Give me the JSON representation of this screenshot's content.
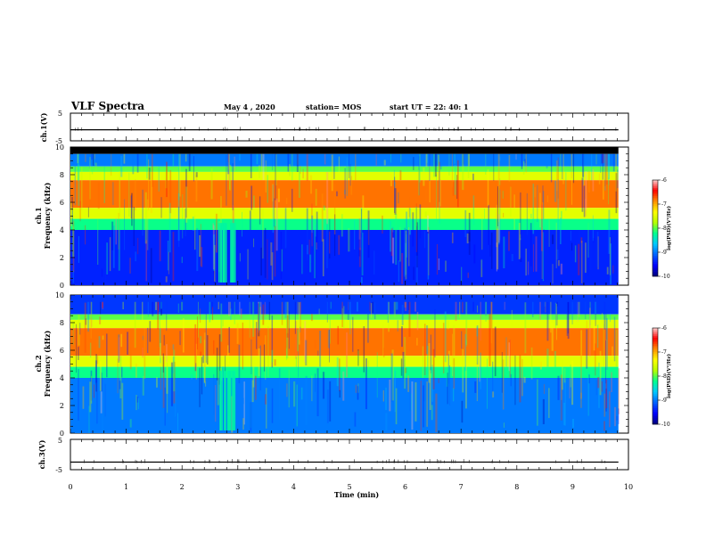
{
  "header": {
    "title": "VLF Spectra",
    "date": "May 4 , 2020",
    "station": "station= MOS",
    "start": "start  UT =   22: 40: 1"
  },
  "colors": {
    "colormap": [
      "#00007a",
      "#0000ff",
      "#0060ff",
      "#00c8ff",
      "#00ff90",
      "#b4ff00",
      "#ffff00",
      "#ff9000",
      "#ff0000",
      "#ffd0d0"
    ],
    "background_black": "#000000"
  },
  "chart_data": [
    {
      "type": "line",
      "panel": "ch1-voltage",
      "ylabel": "ch.1(V)",
      "ylim": [
        -5,
        5
      ],
      "yticks": [
        5,
        -5
      ],
      "series": [
        {
          "x": [
            0,
            9.82
          ],
          "y": [
            -1,
            -1
          ]
        }
      ]
    },
    {
      "type": "heatmap",
      "panel": "ch1-spectrogram",
      "ylabel_lines": [
        "ch.1",
        "Frequency (kHz)"
      ],
      "ylim": [
        0,
        10
      ],
      "xlim": [
        0,
        10
      ],
      "yticks": [
        "0",
        "2",
        "4",
        "6",
        "8",
        "10"
      ],
      "z_label": "log(PSD)(V²/Hz)",
      "zticks": [
        "-6",
        "-7",
        "-8",
        "-9",
        "-10"
      ],
      "zlim": [
        -10,
        -6
      ],
      "data_until_min": 9.82,
      "bands_khz": [
        {
          "from": 9.5,
          "to": 10.0,
          "level": "no data (black)"
        },
        {
          "from": 8.6,
          "to": 9.5,
          "level": -9.0
        },
        {
          "from": 8.2,
          "to": 8.6,
          "level": -8.0
        },
        {
          "from": 7.6,
          "to": 8.2,
          "level": -7.5
        },
        {
          "from": 5.6,
          "to": 7.6,
          "level": -6.8
        },
        {
          "from": 4.8,
          "to": 5.6,
          "level": -7.5
        },
        {
          "from": 4.0,
          "to": 4.8,
          "level": -8.2
        },
        {
          "from": 0.0,
          "to": 4.0,
          "level": -9.4
        }
      ],
      "bursts_min": [
        2.8
      ]
    },
    {
      "type": "heatmap",
      "panel": "ch2-spectrogram",
      "ylabel_lines": [
        "ch.2",
        "Frequency (kHz)"
      ],
      "ylim": [
        0,
        10
      ],
      "xlim": [
        0,
        10
      ],
      "yticks": [
        "0",
        "2",
        "4",
        "6",
        "8",
        "10"
      ],
      "z_label": "log(PSD)(V²/Hz)",
      "zticks": [
        "-6",
        "-7",
        "-8",
        "-9",
        "-10"
      ],
      "zlim": [
        -10,
        -6
      ],
      "data_until_min": 9.82,
      "bands_khz": [
        {
          "from": 8.6,
          "to": 10.0,
          "level": -9.3
        },
        {
          "from": 8.2,
          "to": 8.6,
          "level": -8.0
        },
        {
          "from": 7.6,
          "to": 8.2,
          "level": -7.5
        },
        {
          "from": 5.6,
          "to": 7.6,
          "level": -6.8
        },
        {
          "from": 4.8,
          "to": 5.6,
          "level": -7.5
        },
        {
          "from": 4.0,
          "to": 4.8,
          "level": -8.2
        },
        {
          "from": 0.0,
          "to": 4.0,
          "level": -9.0
        }
      ],
      "bursts_min": [
        2.8
      ]
    },
    {
      "type": "line",
      "panel": "ch3-voltage",
      "ylabel": "ch.3(V)",
      "ylim": [
        -5,
        5
      ],
      "yticks": [
        5,
        -5
      ],
      "series": [
        {
          "x": [
            0,
            9.82
          ],
          "y": [
            -2.5,
            -2.5
          ]
        }
      ]
    }
  ],
  "xaxis": {
    "label": "Time (min)",
    "ticks": [
      "0",
      "1",
      "2",
      "3",
      "4",
      "5",
      "6",
      "7",
      "8",
      "9",
      "10"
    ]
  }
}
